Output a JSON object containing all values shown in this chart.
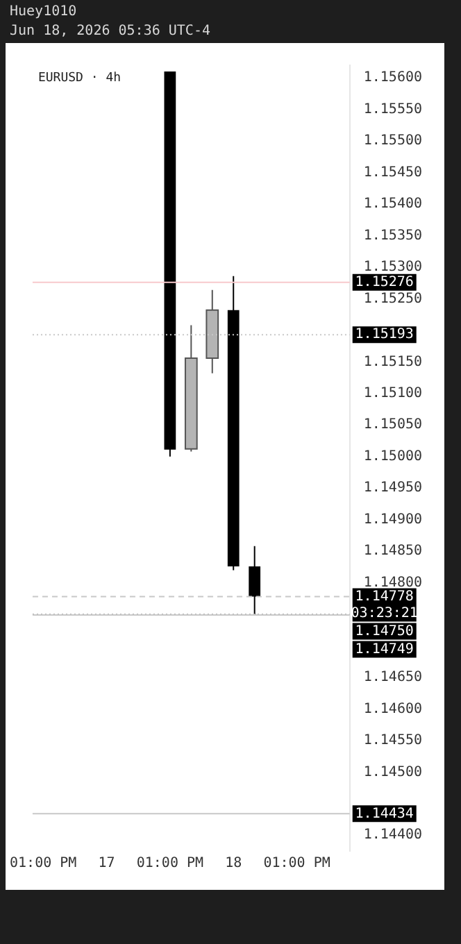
{
  "chart_data": {
    "type": "candlestick",
    "title": "EURUSD · 4h",
    "annotations": [
      "Huey1010",
      "Jun 18, 2026 05:36 UTC-4"
    ],
    "categories": [
      "01:00 PM",
      null,
      null,
      "17",
      null,
      null,
      "01:00 PM",
      null,
      null,
      "18",
      null,
      null,
      "01:00 PM",
      null,
      null
    ],
    "ohlc": [
      null,
      null,
      null,
      null,
      null,
      null,
      [
        1.1561,
        1.1561,
        1.15,
        1.15011
      ],
      [
        1.15012,
        1.15208,
        1.15008,
        1.15156
      ],
      [
        1.15156,
        1.15264,
        1.15132,
        1.15232
      ],
      [
        1.15232,
        1.15286,
        1.1482,
        1.14826
      ],
      [
        1.14826,
        1.14858,
        1.14748,
        1.14778
      ],
      null,
      null,
      null,
      null
    ],
    "colors": [
      null,
      null,
      null,
      null,
      null,
      null,
      "#000000",
      "#b4b4b4",
      "#b4b4b4",
      "#000000",
      "#000000",
      null,
      null,
      null,
      null
    ],
    "ylim": [
      1.14375,
      1.1562
    ],
    "yticks": [
      {
        "value": 1.144,
        "label": "1.14400"
      },
      {
        "value": 1.145,
        "label": "1.14500"
      },
      {
        "value": 1.1455,
        "label": "1.14550"
      },
      {
        "value": 1.146,
        "label": "1.14600"
      },
      {
        "value": 1.1465,
        "label": "1.14650"
      },
      {
        "value": 1.148,
        "label": "1.14800"
      },
      {
        "value": 1.1485,
        "label": "1.14850"
      },
      {
        "value": 1.149,
        "label": "1.14900"
      },
      {
        "value": 1.1495,
        "label": "1.14950"
      },
      {
        "value": 1.15,
        "label": "1.15000"
      },
      {
        "value": 1.1505,
        "label": "1.15050"
      },
      {
        "value": 1.151,
        "label": "1.15100"
      },
      {
        "value": 1.1515,
        "label": "1.15150"
      },
      {
        "value": 1.1525,
        "label": "1.15250"
      },
      {
        "value": 1.153,
        "label": "1.15300"
      },
      {
        "value": 1.1535,
        "label": "1.15350"
      },
      {
        "value": 1.154,
        "label": "1.15400"
      },
      {
        "value": 1.1545,
        "label": "1.15450"
      },
      {
        "value": 1.155,
        "label": "1.15500"
      },
      {
        "value": 1.1555,
        "label": "1.15550"
      },
      {
        "value": 1.156,
        "label": "1.15600"
      }
    ],
    "ref_lines": [
      {
        "axis": "y",
        "value": 1.15276,
        "label": "1.15276",
        "color": "#f7c9cc"
      },
      {
        "axis": "y",
        "value": 1.15193,
        "label": "1.15193",
        "color": "#c8c8c8",
        "line_style": "dotted"
      },
      {
        "axis": "y",
        "value": 1.14778,
        "label": "1.14778\n03:23:21",
        "color": "#c8c8c8",
        "line_style": "dashed"
      },
      {
        "axis": "y",
        "value": 1.1475,
        "label": "1.14750",
        "color": "#b4b4b4",
        "line_style": "dotted"
      },
      {
        "axis": "y",
        "value": 1.14749,
        "label": "1.14749",
        "color": "#c8c8c8"
      },
      {
        "axis": "y",
        "value": 1.14434,
        "label": "1.14434",
        "color": "#c8c8c8"
      }
    ],
    "grid": false
  }
}
